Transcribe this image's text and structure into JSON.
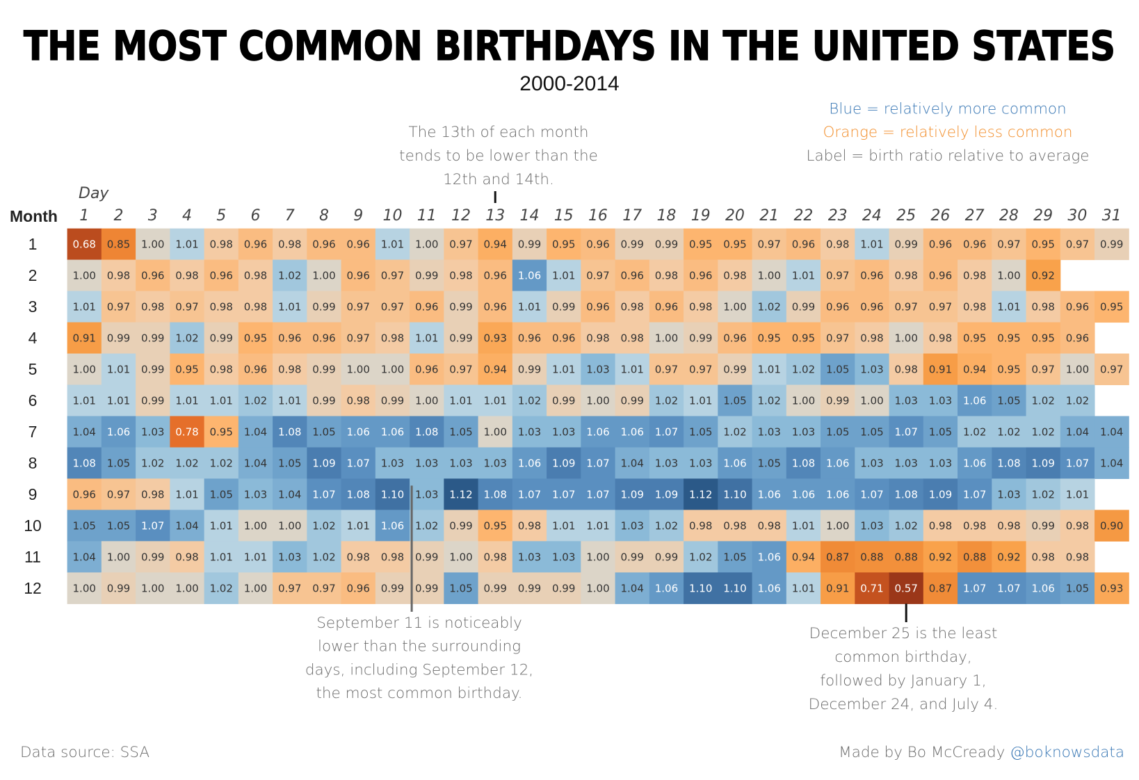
{
  "chart_data": {
    "type": "heatmap",
    "title": "THE MOST COMMON BIRTHDAYS IN THE UNITED STATES",
    "subtitle": "2000-2014",
    "x_label": "Day",
    "y_label": "Month",
    "x_categories": [
      1,
      2,
      3,
      4,
      5,
      6,
      7,
      8,
      9,
      10,
      11,
      12,
      13,
      14,
      15,
      16,
      17,
      18,
      19,
      20,
      21,
      22,
      23,
      24,
      25,
      26,
      27,
      28,
      29,
      30,
      31
    ],
    "y_categories": [
      1,
      2,
      3,
      4,
      5,
      6,
      7,
      8,
      9,
      10,
      11,
      12
    ],
    "values": [
      [
        0.68,
        0.85,
        1.0,
        1.01,
        0.98,
        0.96,
        0.98,
        0.96,
        0.96,
        1.01,
        1.0,
        0.97,
        0.94,
        0.99,
        0.95,
        0.96,
        0.99,
        0.99,
        0.95,
        0.95,
        0.97,
        0.96,
        0.98,
        1.01,
        0.99,
        0.96,
        0.96,
        0.97,
        0.95,
        0.97,
        0.99
      ],
      [
        1.0,
        0.98,
        0.96,
        0.98,
        0.96,
        0.98,
        1.02,
        1.0,
        0.96,
        0.97,
        0.99,
        0.98,
        0.96,
        1.06,
        1.01,
        0.97,
        0.96,
        0.98,
        0.96,
        0.98,
        1.0,
        1.01,
        0.97,
        0.96,
        0.98,
        0.96,
        0.98,
        1.0,
        0.92,
        null,
        null
      ],
      [
        1.01,
        0.97,
        0.98,
        0.97,
        0.98,
        0.98,
        1.01,
        0.99,
        0.97,
        0.97,
        0.96,
        0.99,
        0.96,
        1.01,
        0.99,
        0.96,
        0.98,
        0.96,
        0.98,
        1.0,
        1.02,
        0.99,
        0.96,
        0.96,
        0.97,
        0.97,
        0.98,
        1.01,
        0.98,
        0.96,
        0.95
      ],
      [
        0.91,
        0.99,
        0.99,
        1.02,
        0.99,
        0.95,
        0.96,
        0.96,
        0.97,
        0.98,
        1.01,
        0.99,
        0.93,
        0.96,
        0.96,
        0.98,
        0.98,
        1.0,
        0.99,
        0.96,
        0.95,
        0.95,
        0.97,
        0.98,
        1.0,
        0.98,
        0.95,
        0.95,
        0.95,
        0.96,
        null
      ],
      [
        1.0,
        1.01,
        0.99,
        0.95,
        0.98,
        0.96,
        0.98,
        0.99,
        1.0,
        1.0,
        0.96,
        0.97,
        0.94,
        0.99,
        1.01,
        1.03,
        1.01,
        0.97,
        0.97,
        0.99,
        1.01,
        1.02,
        1.05,
        1.03,
        0.98,
        0.91,
        0.94,
        0.95,
        0.97,
        1.0,
        0.97
      ],
      [
        1.01,
        1.01,
        0.99,
        1.01,
        1.01,
        1.02,
        1.01,
        0.99,
        0.98,
        0.99,
        1.0,
        1.01,
        1.01,
        1.02,
        0.99,
        1.0,
        0.99,
        1.02,
        1.01,
        1.05,
        1.02,
        1.0,
        0.99,
        1.0,
        1.03,
        1.03,
        1.06,
        1.05,
        1.02,
        1.02,
        null
      ],
      [
        1.04,
        1.06,
        1.03,
        0.78,
        0.95,
        1.04,
        1.08,
        1.05,
        1.06,
        1.06,
        1.08,
        1.05,
        1.0,
        1.03,
        1.03,
        1.06,
        1.06,
        1.07,
        1.05,
        1.02,
        1.03,
        1.03,
        1.05,
        1.05,
        1.07,
        1.05,
        1.02,
        1.02,
        1.02,
        1.04,
        1.04
      ],
      [
        1.08,
        1.05,
        1.02,
        1.02,
        1.02,
        1.04,
        1.05,
        1.09,
        1.07,
        1.03,
        1.03,
        1.03,
        1.03,
        1.06,
        1.09,
        1.07,
        1.04,
        1.03,
        1.03,
        1.06,
        1.05,
        1.08,
        1.06,
        1.03,
        1.03,
        1.03,
        1.06,
        1.08,
        1.09,
        1.07,
        1.04
      ],
      [
        0.96,
        0.97,
        0.98,
        1.01,
        1.05,
        1.03,
        1.04,
        1.07,
        1.08,
        1.1,
        1.03,
        1.12,
        1.08,
        1.07,
        1.07,
        1.07,
        1.09,
        1.09,
        1.12,
        1.1,
        1.06,
        1.06,
        1.06,
        1.07,
        1.08,
        1.09,
        1.07,
        1.03,
        1.02,
        1.01,
        null
      ],
      [
        1.05,
        1.05,
        1.07,
        1.04,
        1.01,
        1.0,
        1.0,
        1.02,
        1.01,
        1.06,
        1.02,
        0.99,
        0.95,
        0.98,
        1.01,
        1.01,
        1.03,
        1.02,
        0.98,
        0.98,
        0.98,
        1.01,
        1.0,
        1.03,
        1.02,
        0.98,
        0.98,
        0.98,
        0.99,
        0.98,
        0.9
      ],
      [
        1.04,
        1.0,
        0.99,
        0.98,
        1.01,
        1.01,
        1.03,
        1.02,
        0.98,
        0.98,
        0.99,
        1.0,
        0.98,
        1.03,
        1.03,
        1.0,
        0.99,
        0.99,
        1.02,
        1.05,
        1.06,
        0.94,
        0.87,
        0.88,
        0.88,
        0.92,
        0.88,
        0.92,
        0.98,
        0.98,
        null
      ],
      [
        1.0,
        0.99,
        1.0,
        1.0,
        1.02,
        1.0,
        0.97,
        0.97,
        0.96,
        0.99,
        0.99,
        1.05,
        0.99,
        0.99,
        0.99,
        1.0,
        1.04,
        1.06,
        1.1,
        1.1,
        1.06,
        1.01,
        0.91,
        0.71,
        0.57,
        0.87,
        1.07,
        1.07,
        1.06,
        1.05,
        0.93
      ]
    ],
    "value_labels": [
      [
        "0.68",
        "0.85",
        "1.00",
        "1.01",
        "0.98",
        "0.96",
        "0.98",
        "0.96",
        "0.96",
        "1.01",
        "1.00",
        "0.97",
        "0.94",
        "0.99",
        "0.95",
        "0.96",
        "0.99",
        "0.99",
        "0.95",
        "0.95",
        "0.97",
        "0.96",
        "0.98",
        "1.01",
        "0.99",
        "0.96",
        "0.96",
        "0.97",
        "0.95",
        "0.97",
        "0.99"
      ],
      [
        "1.00",
        "0.98",
        "0.96",
        "0.98",
        "0.96",
        "0.98",
        "1.02",
        "1.00",
        "0.96",
        "0.97",
        "0.99",
        "0.98",
        "0.96",
        "1.06",
        "1.01",
        "0.97",
        "0.96",
        "0.98",
        "0.96",
        "0.98",
        "1.00",
        "1.01",
        "0.97",
        "0.96",
        "0.98",
        "0.96",
        "0.98",
        "1.00",
        "0.92",
        null,
        null
      ],
      [
        "1.01",
        "0.97",
        "0.98",
        "0.97",
        "0.98",
        "0.98",
        "1.01",
        "0.99",
        "0.97",
        "0.97",
        "0.96",
        "0.99",
        "0.96",
        "1.01",
        "0.99",
        "0.96",
        "0.98",
        "0.96",
        "0.98",
        "1.00",
        "1.02",
        "0.99",
        "0.96",
        "0.96",
        "0.97",
        "0.97",
        "0.98",
        "1.01",
        "0.98",
        "0.96",
        "0.95"
      ],
      [
        "0.91",
        "0.99",
        "0.99",
        "1.02",
        "0.99",
        "0.95",
        "0.96",
        "0.96",
        "0.97",
        "0.98",
        "1.01",
        "0.99",
        "0.93",
        "0.96",
        "0.96",
        "0.98",
        "0.98",
        "1.00",
        "0.99",
        "0.96",
        "0.95",
        "0.95",
        "0.97",
        "0.98",
        "1.00",
        "0.98",
        "0.95",
        "0.95",
        "0.95",
        "0.96",
        null
      ],
      [
        "1.00",
        "1.01",
        "0.99",
        "0.95",
        "0.98",
        "0.96",
        "0.98",
        "0.99",
        "1.00",
        "1.00",
        "0.96",
        "0.97",
        "0.94",
        "0.99",
        "1.01",
        "1.03",
        "1.01",
        "0.97",
        "0.97",
        "0.99",
        "1.01",
        "1.02",
        "1.05",
        "1.03",
        "0.98",
        "0.91",
        "0.94",
        "0.95",
        "0.97",
        "1.00",
        "0.97"
      ],
      [
        "1.01",
        "1.01",
        "0.99",
        "1.01",
        "1.01",
        "1.02",
        "1.01",
        "0.99",
        "0.98",
        "0.99",
        "1.00",
        "1.01",
        "1.01",
        "1.02",
        "0.99",
        "1.00",
        "0.99",
        "1.02",
        "1.01",
        "1.05",
        "1.02",
        "1.00",
        "0.99",
        "1.00",
        "1.03",
        "1.03",
        "1.06",
        "1.05",
        "1.02",
        "1.02",
        null
      ],
      [
        "1.04",
        "1.06",
        "1.03",
        "0.78",
        "0.95",
        "1.04",
        "1.08",
        "1.05",
        "1.06",
        "1.06",
        "1.08",
        "1.05",
        "1.00",
        "1.03",
        "1.03",
        "1.06",
        "1.06",
        "1.07",
        "1.05",
        "1.02",
        "1.03",
        "1.03",
        "1.05",
        "1.05",
        "1.07",
        "1.05",
        "1.02",
        "1.02",
        "1.02",
        "1.04",
        "1.04"
      ],
      [
        "1.08",
        "1.05",
        "1.02",
        "1.02",
        "1.02",
        "1.04",
        "1.05",
        "1.09",
        "1.07",
        "1.03",
        "1.03",
        "1.03",
        "1.03",
        "1.06",
        "1.09",
        "1.07",
        "1.04",
        "1.03",
        "1.03",
        "1.06",
        "1.05",
        "1.08",
        "1.06",
        "1.03",
        "1.03",
        "1.03",
        "1.06",
        "1.08",
        "1.09",
        "1.07",
        "1.04"
      ],
      [
        "0.96",
        "0.97",
        "0.98",
        "1.01",
        "1.05",
        "1.03",
        "1.04",
        "1.07",
        "1.08",
        "1.10",
        "1.03",
        "1.12",
        "1.08",
        "1.07",
        "1.07",
        "1.07",
        "1.09",
        "1.09",
        "1.12",
        "1.10",
        "1.06",
        "1.06",
        "1.06",
        "1.07",
        "1.08",
        "1.09",
        "1.07",
        "1.03",
        "1.02",
        "1.01",
        null
      ],
      [
        "1.05",
        "1.05",
        "1.07",
        "1.04",
        "1.01",
        "1.00",
        "1.00",
        "1.02",
        "1.01",
        "1.06",
        "1.02",
        "0.99",
        "0.95",
        "0.98",
        "1.01",
        "1.01",
        "1.03",
        "1.02",
        "0.98",
        "0.98",
        "0.98",
        "1.01",
        "1.00",
        "1.03",
        "1.02",
        "0.98",
        "0.98",
        "0.98",
        "0.99",
        "0.98",
        "0.90"
      ],
      [
        "1.04",
        "1.00",
        "0.99",
        "0.98",
        "1.01",
        "1.01",
        "1.03",
        "1.02",
        "0.98",
        "0.98",
        "0.99",
        "1.00",
        "0.98",
        "1.03",
        "1.03",
        "1.00",
        "0.99",
        "0.99",
        "1.02",
        "1.05",
        "1.06",
        "0.94",
        "0.87",
        "0.88",
        "0.88",
        "0.92",
        "0.88",
        "0.92",
        "0.98",
        "0.98",
        null
      ],
      [
        "1.00",
        "0.99",
        "1.00",
        "1.00",
        "1.02",
        "1.00",
        "0.97",
        "0.97",
        "0.96",
        "0.99",
        "0.99",
        "1.05",
        "0.99",
        "0.99",
        "0.99",
        "1.00",
        "1.04",
        "1.06",
        "1.10",
        "1.10",
        "1.06",
        "1.01",
        "0.91",
        "0.71",
        "0.57",
        "0.87",
        "1.07",
        "1.07",
        "1.06",
        "1.05",
        "0.93"
      ]
    ],
    "color_scale": [
      {
        "value": 0.57,
        "color": "#9b3719"
      },
      {
        "value": 0.71,
        "color": "#c4521f"
      },
      {
        "value": 0.78,
        "color": "#e56f2a"
      },
      {
        "value": 0.87,
        "color": "#f08b37"
      },
      {
        "value": 0.92,
        "color": "#f9a24b"
      },
      {
        "value": 0.95,
        "color": "#fdb56f"
      },
      {
        "value": 0.98,
        "color": "#f4cba4"
      },
      {
        "value": 1.0,
        "color": "#dcd5c8"
      },
      {
        "value": 1.01,
        "color": "#b7d3e2"
      },
      {
        "value": 1.03,
        "color": "#8bbad8"
      },
      {
        "value": 1.05,
        "color": "#6ea2cb"
      },
      {
        "value": 1.07,
        "color": "#5a8fc0"
      },
      {
        "value": 1.09,
        "color": "#4a7db0"
      },
      {
        "value": 1.12,
        "color": "#2b5988"
      }
    ],
    "legend_notes": [
      {
        "text": "Blue = relatively more common",
        "color": "#3a78b5"
      },
      {
        "text": "Orange = relatively less common",
        "color": "#f28e2b"
      },
      {
        "text": "Label = birth ratio relative to average",
        "color": "#6b6b6b"
      }
    ],
    "annotations": [
      {
        "lines": [
          "The 13th of each month",
          "tends to be lower than the",
          "12th and 14th."
        ]
      },
      {
        "lines": [
          "September 11 is noticeably",
          "lower than the surrounding",
          "days, including September 12,",
          "the most common birthday."
        ]
      },
      {
        "lines": [
          "December 25 is the least",
          "common birthday,",
          "followed by January 1,",
          "December 24, and July 4."
        ]
      }
    ],
    "source": "Data source: SSA",
    "credit": "Made by Bo McCready",
    "credit_handle": "@boknowsdata"
  }
}
